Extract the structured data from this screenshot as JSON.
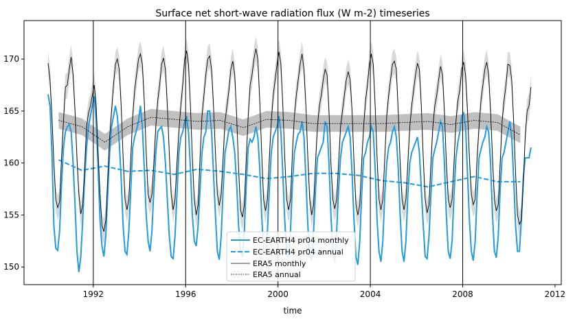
{
  "chart_data": {
    "type": "line",
    "title": "Surface net short-wave radiation flux (W m-2) timeseries",
    "xlabel": "time",
    "ylabel": "",
    "xlim": [
      1989.0,
      2012.27
    ],
    "ylim": [
      148.3,
      173.7
    ],
    "xticks": [
      1992,
      1996,
      2000,
      2004,
      2008,
      2012
    ],
    "yticks": [
      150,
      155,
      160,
      165,
      170
    ],
    "vertical_lines": [
      1992,
      1996,
      2000,
      2004,
      2008
    ],
    "grid": false,
    "legend_placement": "lower-center",
    "colors": {
      "ec_earth": "#1f9be0",
      "era5": "#000000",
      "band": "#d9d9d9",
      "annual_band": "#b0b0b0"
    },
    "years": [
      1990,
      1991,
      1992,
      1993,
      1994,
      1995,
      1996,
      1997,
      1998,
      1999,
      2000,
      2001,
      2002,
      2003,
      2004,
      2005,
      2006,
      2007,
      2008,
      2009,
      2010
    ],
    "series": [
      {
        "name": "EC-EARTH4 pr04 monthly",
        "style": "solid",
        "color": "#1f9be0",
        "monthly_by_year": [
          [
            166.6,
            165.5,
            161.0,
            154.0,
            151.8,
            151.6,
            153.5,
            158.0,
            161.5,
            163.0,
            163.5,
            163.7
          ],
          [
            163.0,
            160.0,
            156.0,
            151.5,
            149.5,
            151.0,
            154.5,
            158.5,
            161.5,
            163.5,
            164.5,
            165.5
          ],
          [
            166.4,
            164.0,
            159.5,
            154.5,
            152.0,
            151.0,
            153.0,
            157.0,
            161.0,
            163.5,
            164.5,
            165.5
          ],
          [
            164.5,
            162.0,
            158.5,
            154.0,
            151.5,
            151.2,
            153.5,
            157.5,
            161.5,
            162.5,
            163.2,
            164.0
          ],
          [
            165.5,
            163.5,
            159.5,
            155.0,
            152.5,
            151.5,
            153.5,
            157.5,
            161.0,
            163.0,
            163.3,
            163.5
          ],
          [
            162.5,
            160.0,
            156.5,
            153.0,
            151.0,
            150.8,
            153.0,
            157.0,
            161.0,
            162.5,
            163.0,
            164.0
          ],
          [
            164.5,
            163.0,
            159.5,
            155.0,
            152.5,
            152.0,
            154.0,
            157.5,
            161.0,
            162.5,
            163.0,
            165.0
          ],
          [
            165.0,
            163.0,
            159.0,
            155.0,
            151.5,
            150.7,
            153.0,
            157.5,
            161.0,
            162.0,
            163.2,
            163.5
          ],
          [
            162.5,
            161.0,
            158.0,
            154.0,
            151.5,
            151.0,
            153.5,
            158.0,
            161.5,
            162.3,
            162.0,
            162.5
          ],
          [
            163.5,
            162.5,
            159.5,
            155.0,
            151.5,
            151.3,
            153.5,
            157.5,
            161.0,
            162.5,
            163.0,
            163.5
          ],
          [
            164.5,
            163.0,
            159.0,
            154.5,
            151.5,
            151.0,
            153.5,
            158.0,
            161.0,
            162.0,
            162.8,
            163.0
          ],
          [
            164.0,
            162.5,
            158.5,
            154.0,
            151.0,
            150.7,
            153.5,
            157.5,
            160.5,
            161.0,
            161.5,
            162.0
          ],
          [
            164.0,
            163.5,
            160.0,
            155.0,
            151.5,
            150.5,
            153.5,
            157.5,
            160.5,
            162.0,
            162.5,
            163.0
          ],
          [
            163.5,
            162.5,
            159.0,
            154.5,
            151.0,
            150.2,
            152.5,
            157.0,
            160.5,
            161.0,
            162.0,
            162.5
          ],
          [
            163.5,
            163.0,
            159.5,
            154.5,
            151.5,
            150.5,
            152.5,
            157.0,
            160.0,
            161.5,
            162.0,
            163.0
          ],
          [
            163.5,
            162.5,
            159.5,
            155.0,
            151.5,
            150.5,
            152.5,
            157.0,
            160.0,
            161.0,
            161.5,
            162.0
          ],
          [
            162.5,
            161.0,
            157.5,
            154.0,
            151.0,
            150.8,
            153.0,
            157.0,
            160.5,
            161.3,
            162.0,
            163.0
          ],
          [
            164.0,
            163.5,
            160.0,
            155.0,
            151.5,
            150.8,
            152.5,
            157.0,
            160.5,
            162.0,
            163.0,
            164.5
          ],
          [
            164.8,
            163.5,
            159.0,
            154.5,
            151.5,
            150.6,
            152.5,
            157.0,
            160.5,
            161.3,
            162.0,
            162.5
          ],
          [
            163.5,
            163.0,
            160.0,
            155.0,
            151.5,
            150.9,
            153.0,
            157.5,
            160.5,
            161.0,
            162.0,
            163.0
          ],
          [
            164.0,
            162.5,
            158.5,
            154.0,
            151.5,
            151.5,
            154.5,
            158.5,
            160.5,
            160.5,
            160.5,
            161.5
          ]
        ]
      },
      {
        "name": "EC-EARTH4 pr04 annual",
        "style": "dashed",
        "color": "#1f9be0",
        "annual": [
          160.3,
          159.3,
          159.7,
          159.2,
          159.3,
          158.9,
          159.4,
          159.2,
          158.9,
          158.5,
          158.7,
          159.0,
          159.0,
          158.8,
          158.3,
          158.1,
          157.7,
          158.2,
          158.7,
          158.2,
          158.2
        ]
      },
      {
        "name": "ERA5 monthly",
        "style": "solid",
        "color": "#000000",
        "band_halfwidth": 1.2,
        "monthly_by_year": [
          [
            169.6,
            168.0,
            164.5,
            160.0,
            156.5,
            155.7,
            156.3,
            160.5,
            164.0,
            167.3,
            167.5,
            169.0
          ],
          [
            170.2,
            168.5,
            165.0,
            160.5,
            157.0,
            155.1,
            156.0,
            159.5,
            163.5,
            164.8,
            165.5,
            166.5
          ],
          [
            167.5,
            165.5,
            161.0,
            157.0,
            154.0,
            153.4,
            154.5,
            158.5,
            162.5,
            165.0,
            167.5,
            169.5
          ],
          [
            170.0,
            169.0,
            165.5,
            160.5,
            156.5,
            155.5,
            156.5,
            160.5,
            164.5,
            167.0,
            168.5,
            170.0
          ],
          [
            170.5,
            169.5,
            166.0,
            161.0,
            157.0,
            156.2,
            157.0,
            160.0,
            163.5,
            166.0,
            167.5,
            169.5
          ],
          [
            170.1,
            169.0,
            165.5,
            161.0,
            157.0,
            155.5,
            156.5,
            160.0,
            163.0,
            165.5,
            167.5,
            170.0
          ],
          [
            170.8,
            169.5,
            165.5,
            160.5,
            156.5,
            155.0,
            156.0,
            160.5,
            164.5,
            166.5,
            168.5,
            170.0
          ],
          [
            170.3,
            169.0,
            165.5,
            161.0,
            157.0,
            155.9,
            157.0,
            160.5,
            164.0,
            165.5,
            167.0,
            169.0
          ],
          [
            169.8,
            168.5,
            164.5,
            159.5,
            155.5,
            154.8,
            156.0,
            160.5,
            164.5,
            167.5,
            168.5,
            170.0
          ],
          [
            171.0,
            170.0,
            166.0,
            161.0,
            156.5,
            155.4,
            156.5,
            160.5,
            164.0,
            166.5,
            168.0,
            169.5
          ],
          [
            170.7,
            169.5,
            165.5,
            160.5,
            156.5,
            155.5,
            156.5,
            161.0,
            164.5,
            166.5,
            168.0,
            169.5
          ],
          [
            170.5,
            169.0,
            165.5,
            160.5,
            156.5,
            155.0,
            156.0,
            160.0,
            163.5,
            165.5,
            166.5,
            168.0
          ],
          [
            169.0,
            168.5,
            165.0,
            160.0,
            156.5,
            155.6,
            156.5,
            160.0,
            163.5,
            165.0,
            166.5,
            168.0
          ],
          [
            168.8,
            168.0,
            165.0,
            160.0,
            156.0,
            155.0,
            156.0,
            160.0,
            163.5,
            166.0,
            167.5,
            169.5
          ],
          [
            170.5,
            169.5,
            165.5,
            160.5,
            156.5,
            155.5,
            156.5,
            160.5,
            164.5,
            166.5,
            168.0,
            169.5
          ],
          [
            169.8,
            169.0,
            165.0,
            160.0,
            156.5,
            155.5,
            156.5,
            160.0,
            163.5,
            165.5,
            167.0,
            168.5
          ],
          [
            169.6,
            169.0,
            165.5,
            160.5,
            156.5,
            155.2,
            156.0,
            160.0,
            163.5,
            165.5,
            166.5,
            168.0
          ],
          [
            169.3,
            168.5,
            165.0,
            160.0,
            156.5,
            155.7,
            156.5,
            160.0,
            164.0,
            166.0,
            167.0,
            169.0
          ],
          [
            169.7,
            168.5,
            165.0,
            160.5,
            157.0,
            156.0,
            156.5,
            160.5,
            163.5,
            166.0,
            167.5,
            169.0
          ],
          [
            169.7,
            168.5,
            165.0,
            160.5,
            156.5,
            155.4,
            156.0,
            160.0,
            164.0,
            166.0,
            167.5,
            169.5
          ],
          [
            169.4,
            168.0,
            164.0,
            159.0,
            155.0,
            154.1,
            154.5,
            158.0,
            162.5,
            165.0,
            165.5,
            167.3
          ]
        ]
      },
      {
        "name": "ERA5 annual",
        "style": "dotted",
        "color": "#000000",
        "band_halfwidth": 0.8,
        "annual": [
          164.1,
          163.5,
          162.0,
          163.5,
          164.4,
          164.2,
          164.0,
          164.1,
          163.4,
          164.2,
          164.1,
          163.8,
          163.8,
          163.8,
          163.8,
          163.9,
          164.0,
          163.7,
          164.1,
          163.9,
          162.7
        ]
      }
    ]
  }
}
